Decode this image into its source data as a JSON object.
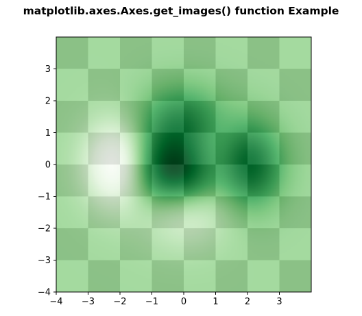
{
  "chart_data": {
    "type": "heatmap",
    "title": "matplotlib.axes.Axes.get_images() function Example",
    "xlabel": "",
    "ylabel": "",
    "xlim": [
      -4,
      4
    ],
    "ylim": [
      -4,
      4
    ],
    "x_ticks": [
      "−4",
      "−3",
      "−2",
      "−1",
      "0",
      "1",
      "2",
      "3"
    ],
    "y_ticks": [
      "3",
      "2",
      "1",
      "0",
      "−1",
      "−2",
      "−3",
      "−4"
    ],
    "checkerboard": {
      "cmap": "gray",
      "size": 8,
      "dark_color": "#000000",
      "light_color": "#ffffff"
    },
    "overlay": {
      "cmap": "Greens",
      "alpha": 0.9,
      "function": "(1 - x/2 + x^5 + y^3) * exp(-(x^2 + y^2))",
      "x_range": [
        -3,
        3
      ],
      "y_range": [
        -3,
        3
      ],
      "light_color": "#f7fcf5",
      "dark_color": "#00441b"
    }
  }
}
